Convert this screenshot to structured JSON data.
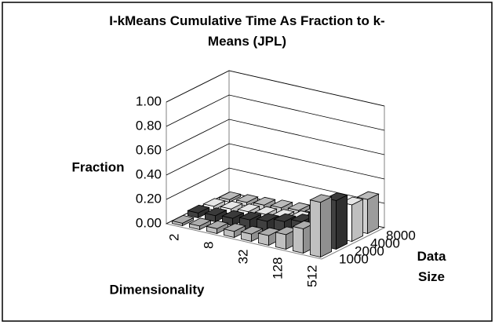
{
  "chart_data": {
    "type": "bar3d",
    "title": "I-kMeans Cumulative Time As Fraction to k-Means (JPL)",
    "ylabel": "Fraction",
    "xlabel": "Dimensionality",
    "zlabel": "Data Size",
    "categories": [
      "2",
      null,
      "8",
      null,
      "32",
      null,
      "128",
      null,
      "512"
    ],
    "series": [
      {
        "name": "1000",
        "color": "#c0c0c0",
        "values": [
          0.02,
          0.03,
          0.04,
          0.05,
          0.06,
          0.08,
          0.12,
          0.2,
          0.45
        ]
      },
      {
        "name": "2000",
        "color": "#404040",
        "values": [
          0.04,
          0.05,
          0.06,
          0.08,
          0.1,
          0.13,
          0.16,
          0.25,
          0.4
        ]
      },
      {
        "name": "4000",
        "color": "#ffffff",
        "values": [
          0.03,
          0.04,
          0.05,
          0.06,
          0.07,
          0.09,
          0.12,
          0.18,
          0.3
        ]
      },
      {
        "name": "8000",
        "color": "#d0d0d0",
        "values": [
          0.02,
          0.03,
          0.04,
          0.05,
          0.06,
          0.07,
          0.1,
          0.15,
          0.28
        ]
      }
    ],
    "ylim": [
      0,
      1
    ],
    "yticks": [
      {
        "value": 0,
        "label": "0.00"
      },
      {
        "value": 0.2,
        "label": "0.20"
      },
      {
        "value": 0.4,
        "label": "0.40"
      },
      {
        "value": 0.6,
        "label": "0.60"
      },
      {
        "value": 0.8,
        "label": "0.80"
      },
      {
        "value": 1,
        "label": "1.00"
      }
    ],
    "grid": true
  }
}
